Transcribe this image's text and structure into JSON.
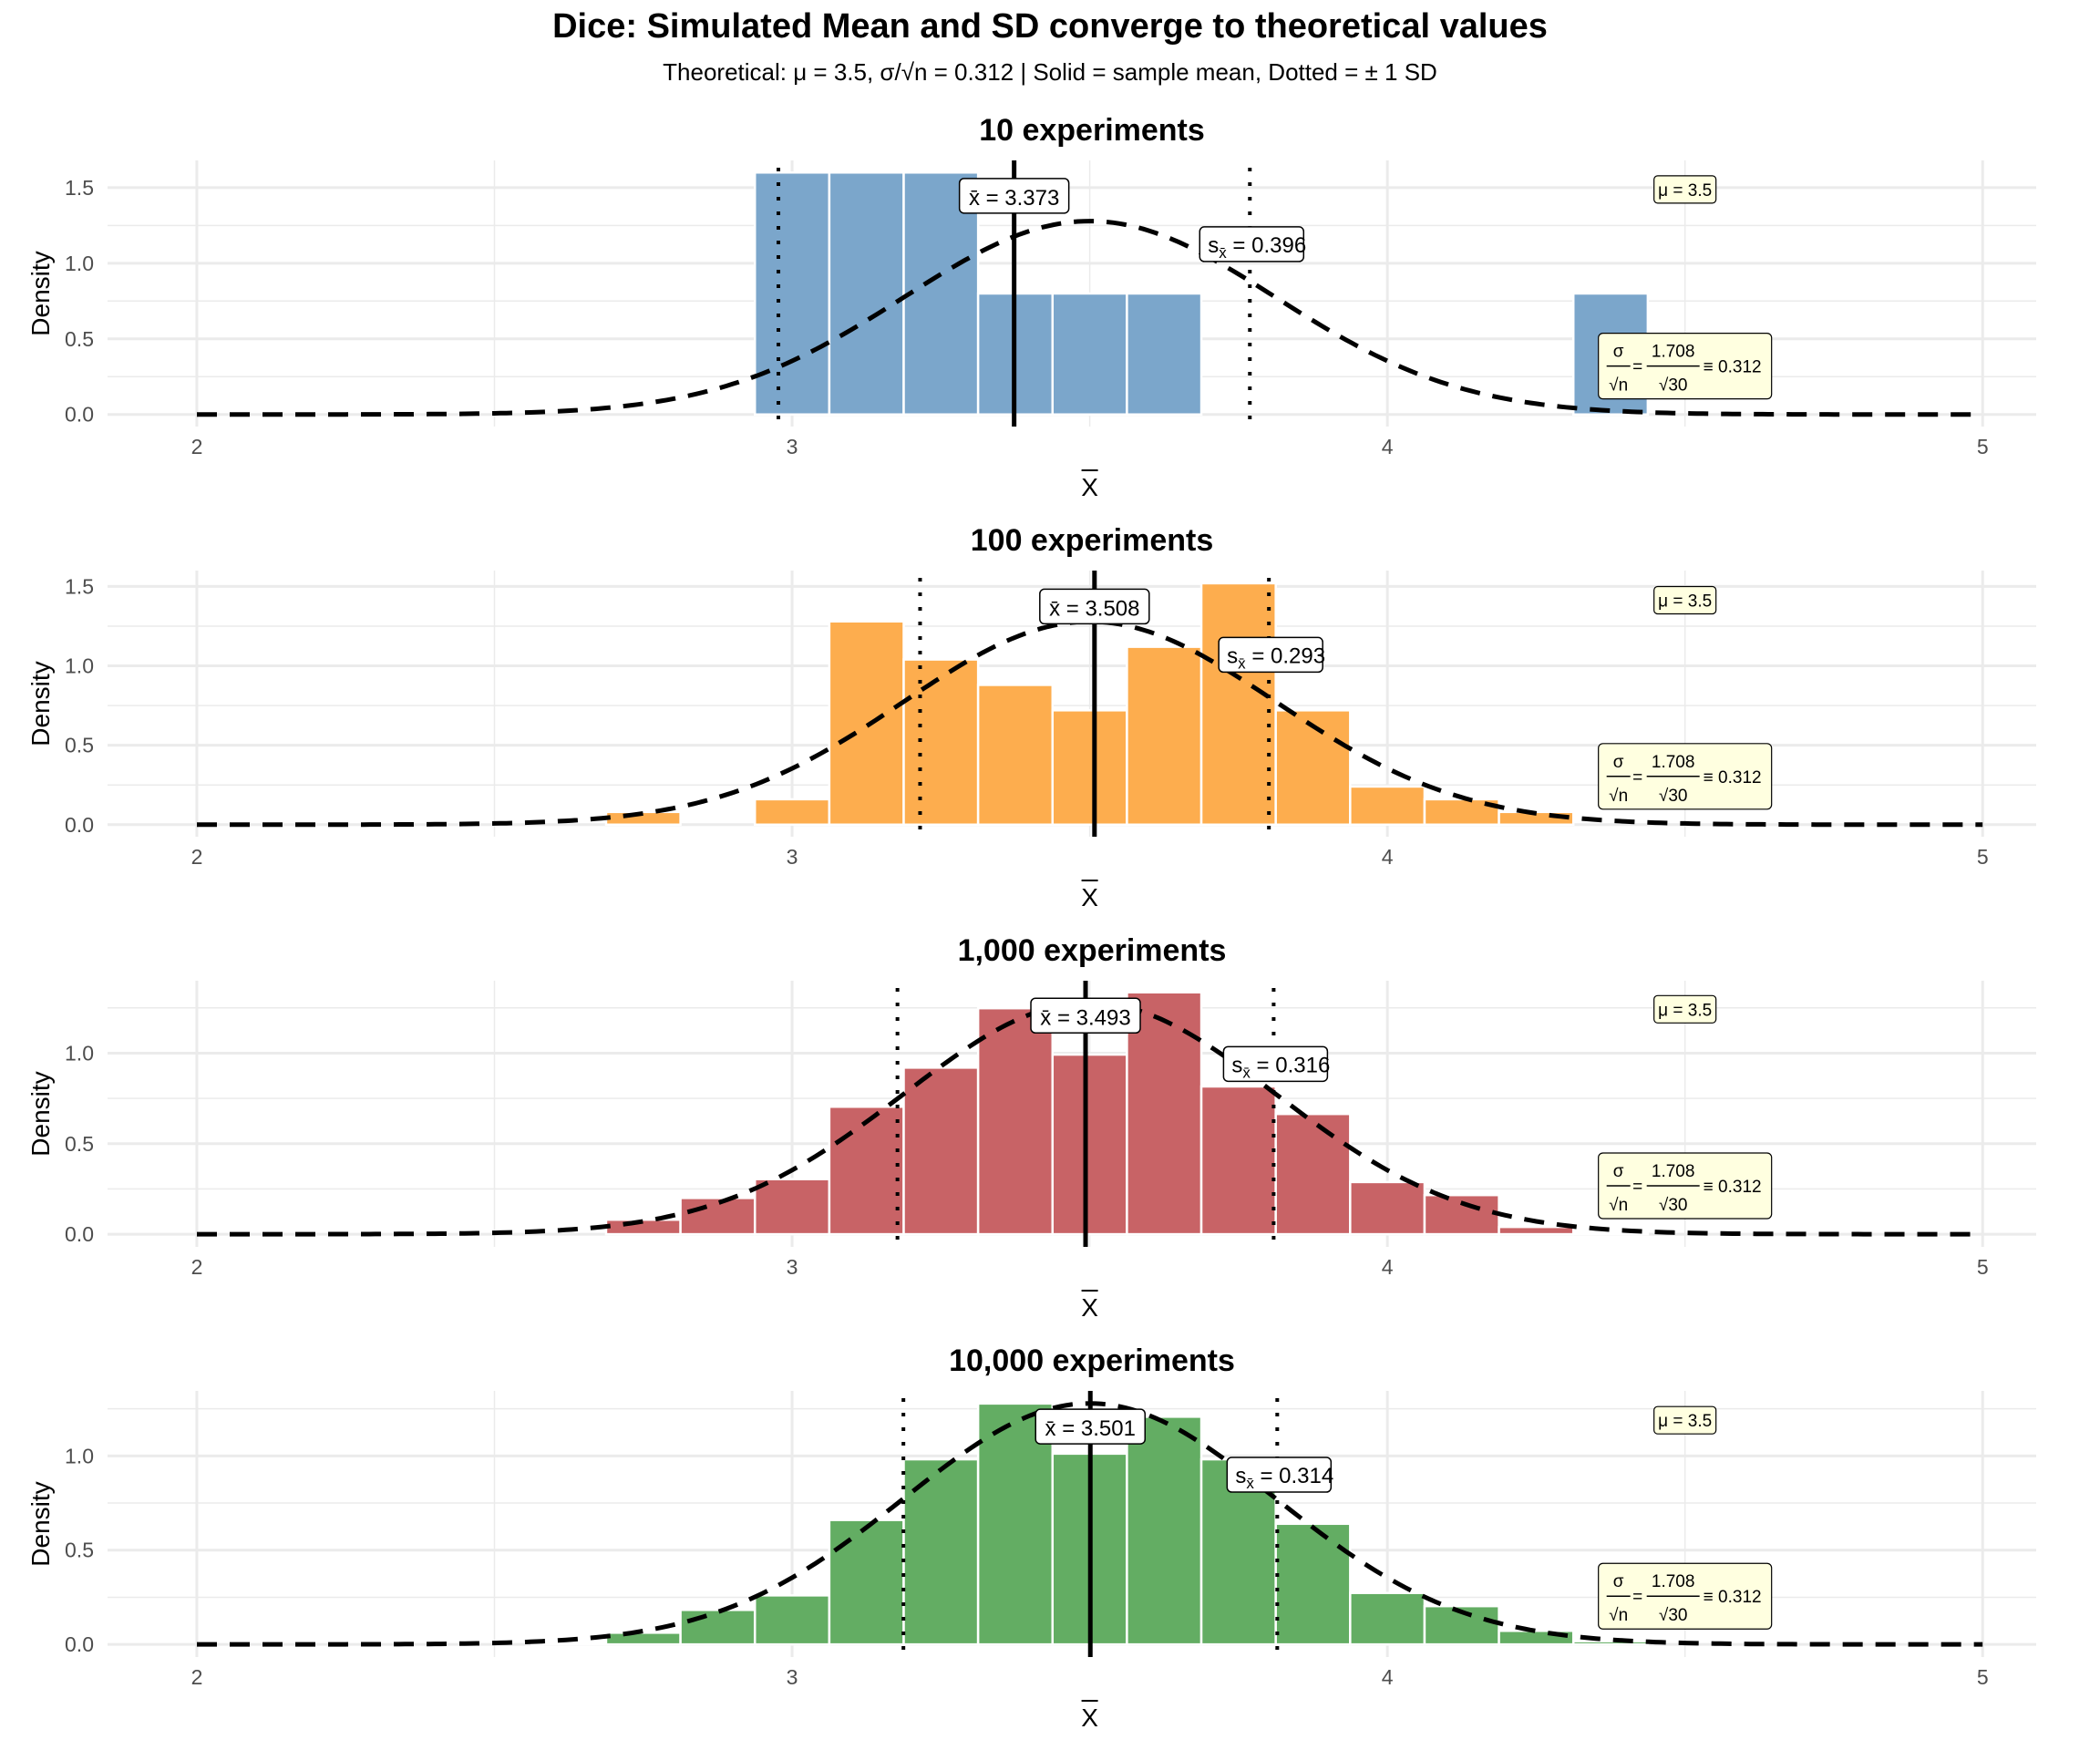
{
  "title": "Dice: Simulated Mean and SD converge to theoretical values",
  "subtitle": "Theoretical: μ = 3.5,  σ/√n = 0.312  |  Solid = sample mean, Dotted = ± 1 SD",
  "chart_data": [
    {
      "type": "bar",
      "title": "10 experiments",
      "experiments": 10,
      "color": "#7BA6CB",
      "xlabel": "X̄",
      "ylabel": "Density",
      "xlim": [
        1.85,
        5.09
      ],
      "ylim": [
        -0.08,
        1.68
      ],
      "xticks": [
        2,
        3,
        4,
        5
      ],
      "yticks": [
        0.0,
        0.5,
        1.0,
        1.5
      ],
      "ytick_labels": [
        "0.0",
        "0.5",
        "1.0",
        "1.5"
      ],
      "grid": true,
      "bin_width": 0.125,
      "bin_centers": [
        3.0,
        3.125,
        3.25,
        3.375,
        3.5,
        3.625,
        4.375
      ],
      "density": [
        1.6,
        1.6,
        1.6,
        0.8,
        0.8,
        0.8,
        0.8
      ],
      "sample_mean": 3.373,
      "sample_sd": 0.396,
      "mean_label": "3.373",
      "sd_label": "0.396"
    },
    {
      "type": "bar",
      "title": "100 experiments",
      "experiments": 100,
      "color": "#FDAD4E",
      "xlabel": "X̄",
      "ylabel": "Density",
      "xlim": [
        1.85,
        5.09
      ],
      "ylim": [
        -0.076,
        1.6
      ],
      "xticks": [
        2,
        3,
        4,
        5
      ],
      "yticks": [
        0.0,
        0.5,
        1.0,
        1.5
      ],
      "ytick_labels": [
        "0.0",
        "0.5",
        "1.0",
        "1.5"
      ],
      "grid": true,
      "bin_width": 0.125,
      "bin_centers": [
        2.75,
        3.0,
        3.125,
        3.25,
        3.375,
        3.5,
        3.625,
        3.75,
        3.875,
        4.0,
        4.125,
        4.25
      ],
      "density": [
        0.08,
        0.16,
        1.28,
        1.04,
        0.88,
        0.72,
        1.12,
        1.52,
        0.72,
        0.24,
        0.16,
        0.08
      ],
      "sample_mean": 3.508,
      "sample_sd": 0.293,
      "mean_label": "3.508",
      "sd_label": "0.293"
    },
    {
      "type": "bar",
      "title": "1,000 experiments",
      "experiments": 1000,
      "color": "#C86366",
      "xlabel": "X̄",
      "ylabel": "Density",
      "xlim": [
        1.85,
        5.09
      ],
      "ylim": [
        -0.07,
        1.4
      ],
      "xticks": [
        2,
        3,
        4,
        5
      ],
      "yticks": [
        0.0,
        0.5,
        1.0
      ],
      "ytick_labels": [
        "0.0",
        "0.5",
        "1.0"
      ],
      "grid": true,
      "bin_width": 0.125,
      "bin_centers": [
        2.75,
        2.875,
        3.0,
        3.125,
        3.25,
        3.375,
        3.5,
        3.625,
        3.75,
        3.875,
        4.0,
        4.125,
        4.25,
        4.375
      ],
      "density": [
        0.08,
        0.2,
        0.304,
        0.704,
        0.92,
        1.248,
        0.992,
        1.336,
        0.816,
        0.664,
        0.288,
        0.216,
        0.04,
        0.008
      ],
      "sample_mean": 3.493,
      "sample_sd": 0.316,
      "mean_label": "3.493",
      "sd_label": "0.316"
    },
    {
      "type": "bar",
      "title": "10,000 experiments",
      "experiments": 10000,
      "color": "#63AD63",
      "xlabel": "X̄",
      "ylabel": "Density",
      "xlim": [
        1.85,
        5.09
      ],
      "ylim": [
        -0.067,
        1.345
      ],
      "xticks": [
        2,
        3,
        4,
        5
      ],
      "yticks": [
        0.0,
        0.5,
        1.0
      ],
      "ytick_labels": [
        "0.0",
        "0.5",
        "1.0"
      ],
      "grid": true,
      "bin_width": 0.125,
      "bin_centers": [
        2.625,
        2.75,
        2.875,
        3.0,
        3.125,
        3.25,
        3.375,
        3.5,
        3.625,
        3.75,
        3.875,
        4.0,
        4.125,
        4.25,
        4.375
      ],
      "density": [
        0.012,
        0.062,
        0.183,
        0.26,
        0.66,
        0.982,
        1.278,
        1.012,
        1.208,
        0.982,
        0.64,
        0.273,
        0.203,
        0.072,
        0.017
      ],
      "sample_mean": 3.501,
      "sample_sd": 0.314,
      "mean_label": "3.501",
      "sd_label": "0.314"
    }
  ],
  "theory": {
    "mu": 3.5,
    "sigma": 1.708,
    "n": 30,
    "se": 0.312,
    "mu_label": "μ = 3.5",
    "sigma_label": "σ",
    "sqrt_n_label": "√n",
    "sigma_value_label": "1.708",
    "sqrt_30_label": "√30",
    "equals": "=",
    "approx": "≡ 0.312",
    "curve_x_range": [
      2,
      5
    ]
  },
  "labels": {
    "mean_prefix": "x̄ = ",
    "sd_prefix_s": "s",
    "sd_prefix_sub": "x̄",
    "sd_eq": " = ",
    "tick_labels_x": [
      "2",
      "3",
      "4",
      "5"
    ]
  }
}
